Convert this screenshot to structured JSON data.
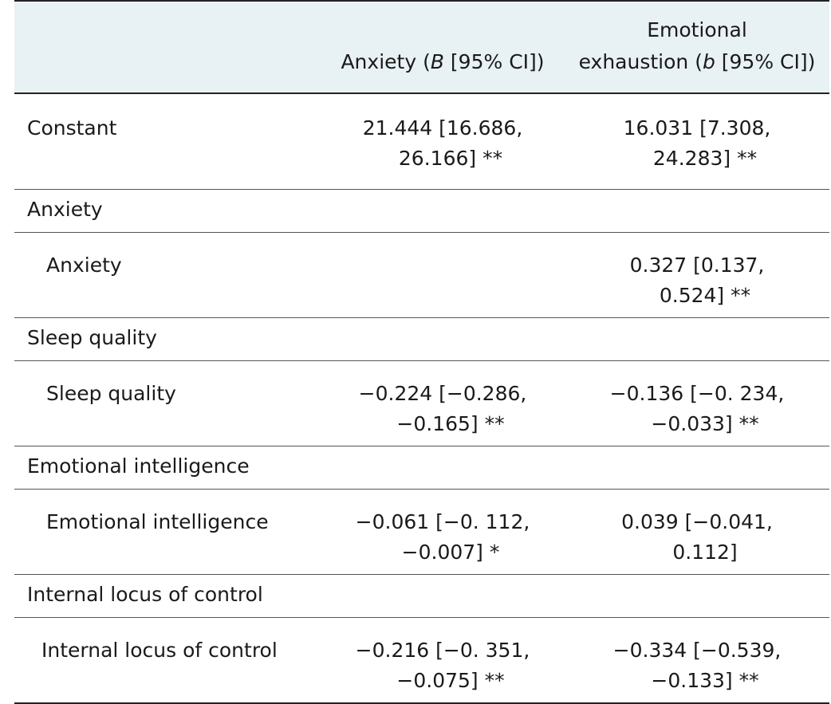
{
  "header": {
    "col2": "Anxiety (B [95% CI])",
    "col3_line1": "Emotional",
    "col3_line2": "exhaustion (b [95% CI])"
  },
  "rows": [
    {
      "label": "Constant",
      "anxiety": [
        "21.444 [16.686,",
        "26.166] **"
      ],
      "exhaustion": [
        "16.031 [7.308,",
        "24.283] **"
      ]
    },
    {
      "section": "Anxiety"
    },
    {
      "label": "Anxiety",
      "anxiety": [
        "",
        ""
      ],
      "exhaustion": [
        "0.327 [0.137,",
        "0.524] **"
      ]
    },
    {
      "section": "Sleep quality"
    },
    {
      "label": "Sleep quality",
      "anxiety": [
        "−0.224 [−0.286,",
        "−0.165] **"
      ],
      "exhaustion": [
        "−0.136 [−0. 234,",
        "−0.033] **"
      ]
    },
    {
      "section": "Emotional intelligence"
    },
    {
      "label": "Emotional intelligence",
      "anxiety": [
        "−0.061 [−0. 112,",
        "−0.007] *"
      ],
      "exhaustion": [
        "0.039 [−0.041,",
        "0.112]"
      ]
    },
    {
      "section": "Internal locus of control"
    },
    {
      "label": "Internal locus of control",
      "anxiety": [
        "−0.216 [−0. 351,",
        "−0.075] **"
      ],
      "exhaustion": [
        "−0.334 [−0.539,",
        "−0.133] **"
      ]
    }
  ]
}
